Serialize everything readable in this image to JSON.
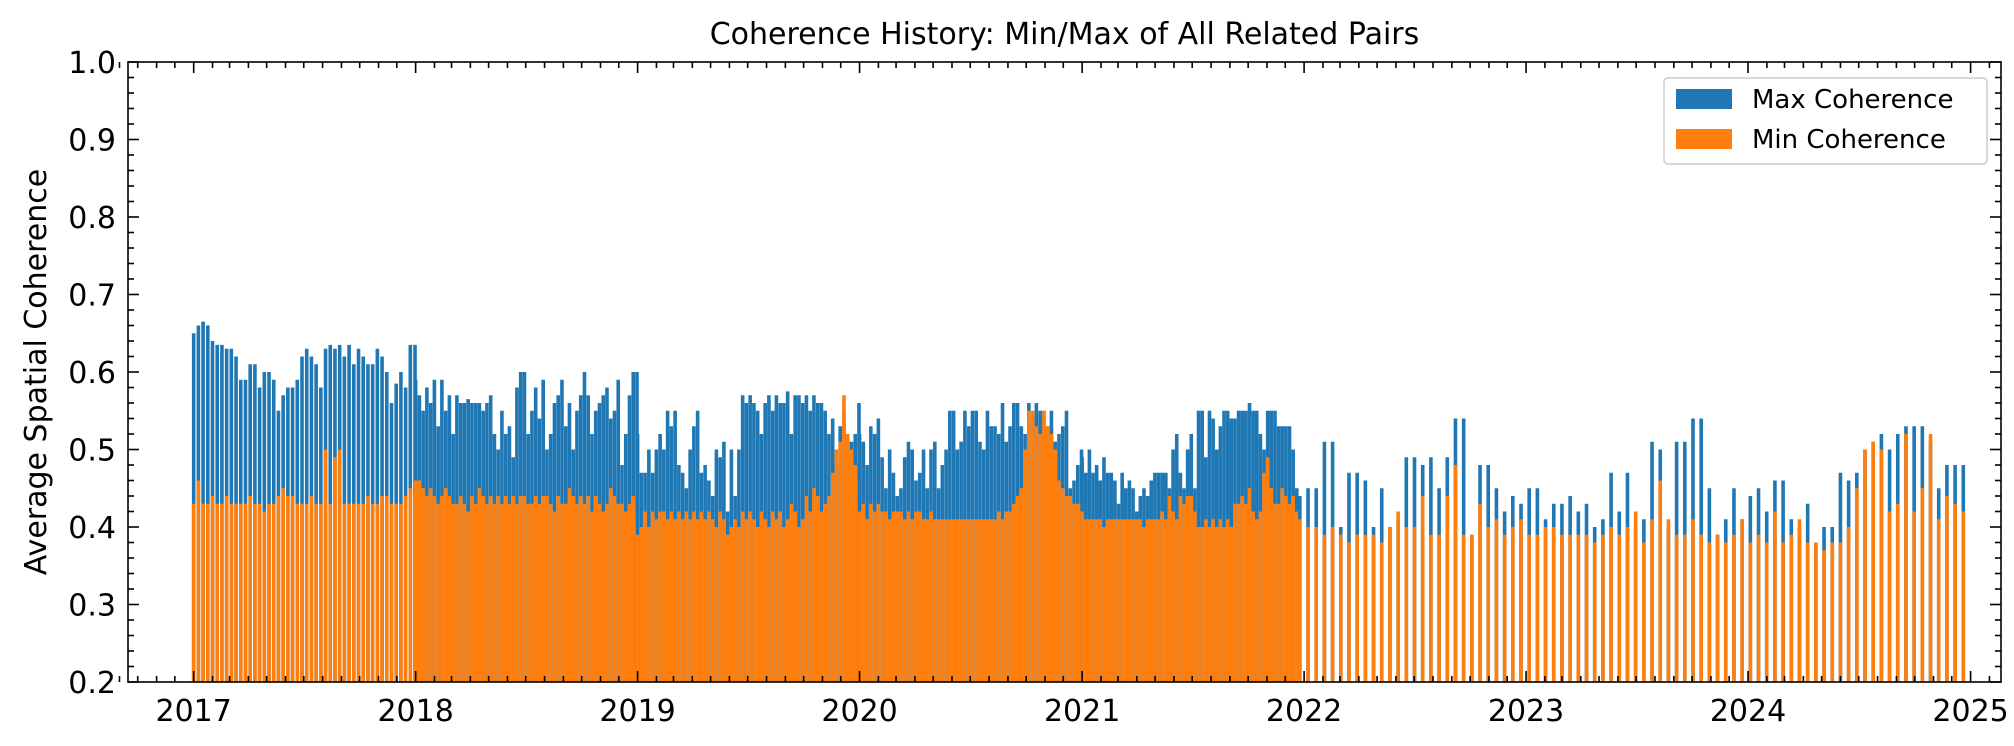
{
  "colors": {
    "max_series": "#1f77b4",
    "min_series": "#ff7f0e",
    "axis": "#000000",
    "legend_border": "#cccccc"
  },
  "chart_data": {
    "type": "bar",
    "title": "Coherence History: Min/Max of All Related Pairs",
    "xlabel": "",
    "ylabel": "Average Spatial Coherence",
    "ylim": [
      0.2,
      1.0
    ],
    "xlim": [
      "2016-09-15",
      "2025-02-20"
    ],
    "x_tick_labels": [
      "2017",
      "2018",
      "2019",
      "2020",
      "2021",
      "2022",
      "2023",
      "2024",
      "2025"
    ],
    "y_tick_labels": [
      "0.2",
      "0.3",
      "0.4",
      "0.5",
      "0.6",
      "0.7",
      "0.8",
      "0.9",
      "1.0"
    ],
    "grid": false,
    "legend_position": "top-right",
    "legend": [
      "Max Coherence",
      "Min Coherence"
    ],
    "segments": [
      {
        "start": "2017-01-01",
        "end": "2017-12-31",
        "n": 48,
        "max_values": [
          0.65,
          0.66,
          0.665,
          0.66,
          0.64,
          0.635,
          0.635,
          0.63,
          0.63,
          0.62,
          0.59,
          0.59,
          0.61,
          0.61,
          0.58,
          0.6,
          0.6,
          0.59,
          0.55,
          0.57,
          0.58,
          0.58,
          0.59,
          0.62,
          0.63,
          0.62,
          0.61,
          0.58,
          0.63,
          0.635,
          0.63,
          0.635,
          0.62,
          0.635,
          0.61,
          0.63,
          0.62,
          0.61,
          0.61,
          0.63,
          0.62,
          0.6,
          0.56,
          0.585,
          0.6,
          0.58,
          0.635,
          0.635
        ],
        "min_values": [
          0.43,
          0.46,
          0.43,
          0.43,
          0.44,
          0.43,
          0.43,
          0.44,
          0.43,
          0.43,
          0.43,
          0.43,
          0.44,
          0.43,
          0.43,
          0.42,
          0.43,
          0.43,
          0.44,
          0.45,
          0.44,
          0.44,
          0.43,
          0.43,
          0.43,
          0.44,
          0.43,
          0.43,
          0.5,
          0.43,
          0.49,
          0.5,
          0.43,
          0.43,
          0.43,
          0.43,
          0.43,
          0.44,
          0.43,
          0.43,
          0.44,
          0.44,
          0.43,
          0.43,
          0.43,
          0.44,
          0.45,
          0.44
        ]
      },
      {
        "start": "2018-01-01",
        "end": "2018-12-31",
        "n": 60,
        "max_values": [
          0.59,
          0.57,
          0.55,
          0.58,
          0.56,
          0.59,
          0.53,
          0.59,
          0.55,
          0.57,
          0.52,
          0.57,
          0.56,
          0.56,
          0.565,
          0.56,
          0.56,
          0.56,
          0.55,
          0.56,
          0.57,
          0.52,
          0.5,
          0.55,
          0.52,
          0.53,
          0.49,
          0.58,
          0.6,
          0.6,
          0.52,
          0.55,
          0.58,
          0.54,
          0.59,
          0.5,
          0.52,
          0.56,
          0.57,
          0.59,
          0.53,
          0.56,
          0.5,
          0.55,
          0.57,
          0.6,
          0.57,
          0.52,
          0.55,
          0.56,
          0.57,
          0.58,
          0.54,
          0.55,
          0.59,
          0.48,
          0.52,
          0.57,
          0.6,
          0.6
        ],
        "min_values": [
          0.46,
          0.46,
          0.45,
          0.44,
          0.45,
          0.44,
          0.43,
          0.44,
          0.45,
          0.44,
          0.43,
          0.43,
          0.44,
          0.43,
          0.42,
          0.44,
          0.43,
          0.45,
          0.44,
          0.43,
          0.44,
          0.43,
          0.44,
          0.43,
          0.44,
          0.43,
          0.44,
          0.43,
          0.44,
          0.44,
          0.43,
          0.43,
          0.44,
          0.43,
          0.44,
          0.44,
          0.43,
          0.42,
          0.44,
          0.43,
          0.43,
          0.45,
          0.44,
          0.43,
          0.44,
          0.43,
          0.44,
          0.42,
          0.44,
          0.43,
          0.42,
          0.43,
          0.45,
          0.44,
          0.43,
          0.43,
          0.42,
          0.43,
          0.44,
          0.42
        ]
      },
      {
        "start": "2019-01-01",
        "end": "2019-12-31",
        "n": 60,
        "max_values": [
          0.52,
          0.47,
          0.47,
          0.5,
          0.47,
          0.5,
          0.52,
          0.5,
          0.55,
          0.53,
          0.55,
          0.48,
          0.47,
          0.45,
          0.5,
          0.53,
          0.55,
          0.47,
          0.48,
          0.46,
          0.44,
          0.5,
          0.49,
          0.51,
          0.42,
          0.5,
          0.44,
          0.5,
          0.57,
          0.56,
          0.57,
          0.56,
          0.55,
          0.52,
          0.56,
          0.57,
          0.55,
          0.57,
          0.56,
          0.56,
          0.575,
          0.52,
          0.57,
          0.57,
          0.56,
          0.57,
          0.55,
          0.57,
          0.56,
          0.56,
          0.55,
          0.52,
          0.54,
          0.48,
          0.53,
          0.55,
          0.52,
          0.51,
          0.52,
          0.56
        ],
        "min_values": [
          0.39,
          0.4,
          0.42,
          0.4,
          0.42,
          0.41,
          0.42,
          0.42,
          0.41,
          0.42,
          0.41,
          0.42,
          0.41,
          0.42,
          0.41,
          0.42,
          0.41,
          0.42,
          0.41,
          0.42,
          0.41,
          0.4,
          0.42,
          0.41,
          0.39,
          0.4,
          0.41,
          0.4,
          0.42,
          0.41,
          0.42,
          0.41,
          0.4,
          0.42,
          0.41,
          0.4,
          0.42,
          0.41,
          0.42,
          0.4,
          0.41,
          0.43,
          0.42,
          0.4,
          0.41,
          0.44,
          0.42,
          0.45,
          0.44,
          0.42,
          0.43,
          0.44,
          0.47,
          0.5,
          0.51,
          0.57,
          0.52,
          0.5,
          0.48,
          0.46
        ]
      },
      {
        "start": "2020-01-01",
        "end": "2020-12-31",
        "n": 60,
        "max_values": [
          0.52,
          0.51,
          0.48,
          0.53,
          0.52,
          0.54,
          0.49,
          0.45,
          0.5,
          0.47,
          0.44,
          0.45,
          0.49,
          0.51,
          0.5,
          0.46,
          0.47,
          0.5,
          0.45,
          0.5,
          0.51,
          0.45,
          0.48,
          0.5,
          0.55,
          0.55,
          0.5,
          0.51,
          0.55,
          0.53,
          0.55,
          0.55,
          0.51,
          0.5,
          0.55,
          0.53,
          0.53,
          0.52,
          0.56,
          0.51,
          0.53,
          0.56,
          0.56,
          0.53,
          0.52,
          0.56,
          0.54,
          0.56,
          0.55,
          0.55,
          0.53,
          0.55,
          0.51,
          0.52,
          0.53,
          0.55,
          0.45,
          0.46,
          0.48,
          0.5
        ],
        "min_values": [
          0.42,
          0.43,
          0.41,
          0.43,
          0.42,
          0.43,
          0.42,
          0.42,
          0.41,
          0.42,
          0.42,
          0.42,
          0.41,
          0.42,
          0.41,
          0.42,
          0.42,
          0.41,
          0.41,
          0.42,
          0.41,
          0.41,
          0.41,
          0.41,
          0.41,
          0.41,
          0.41,
          0.41,
          0.41,
          0.41,
          0.41,
          0.41,
          0.41,
          0.41,
          0.41,
          0.41,
          0.41,
          0.42,
          0.41,
          0.42,
          0.42,
          0.43,
          0.44,
          0.45,
          0.5,
          0.55,
          0.55,
          0.53,
          0.52,
          0.55,
          0.53,
          0.52,
          0.5,
          0.46,
          0.45,
          0.44,
          0.44,
          0.43,
          0.43,
          0.43
        ]
      },
      {
        "start": "2021-01-01",
        "end": "2021-12-20",
        "n": 60,
        "max_values": [
          0.49,
          0.47,
          0.5,
          0.47,
          0.48,
          0.46,
          0.49,
          0.47,
          0.47,
          0.46,
          0.43,
          0.47,
          0.45,
          0.46,
          0.45,
          0.42,
          0.44,
          0.45,
          0.44,
          0.46,
          0.47,
          0.47,
          0.47,
          0.47,
          0.45,
          0.5,
          0.52,
          0.47,
          0.45,
          0.5,
          0.52,
          0.45,
          0.55,
          0.55,
          0.49,
          0.55,
          0.54,
          0.5,
          0.53,
          0.55,
          0.55,
          0.54,
          0.54,
          0.55,
          0.55,
          0.55,
          0.56,
          0.55,
          0.55,
          0.52,
          0.5,
          0.55,
          0.55,
          0.55,
          0.53,
          0.53,
          0.53,
          0.53,
          0.5,
          0.45
        ],
        "min_values": [
          0.42,
          0.41,
          0.41,
          0.41,
          0.41,
          0.41,
          0.4,
          0.41,
          0.41,
          0.41,
          0.41,
          0.41,
          0.41,
          0.41,
          0.41,
          0.41,
          0.41,
          0.4,
          0.41,
          0.41,
          0.41,
          0.41,
          0.42,
          0.41,
          0.44,
          0.42,
          0.41,
          0.44,
          0.43,
          0.44,
          0.44,
          0.42,
          0.4,
          0.4,
          0.41,
          0.4,
          0.41,
          0.4,
          0.41,
          0.4,
          0.41,
          0.4,
          0.43,
          0.43,
          0.44,
          0.43,
          0.45,
          0.42,
          0.41,
          0.42,
          0.47,
          0.49,
          0.45,
          0.43,
          0.43,
          0.45,
          0.44,
          0.43,
          0.44,
          0.42
        ]
      },
      {
        "start": "2021-12-25",
        "end": "2024-12-20",
        "n": 82,
        "max_values": [
          0.44,
          0.45,
          0.45,
          0.51,
          0.51,
          0.4,
          0.47,
          0.47,
          0.46,
          0.4,
          0.45,
          0.4,
          0.41,
          0.49,
          0.49,
          0.48,
          0.49,
          0.45,
          0.49,
          0.54,
          0.54,
          0.39,
          0.48,
          0.48,
          0.45,
          0.42,
          0.44,
          0.43,
          0.45,
          0.45,
          0.41,
          0.43,
          0.43,
          0.44,
          0.42,
          0.43,
          0.4,
          0.41,
          0.47,
          0.42,
          0.47,
          0.4,
          0.41,
          0.51,
          0.5,
          0.4,
          0.51,
          0.51,
          0.54,
          0.54,
          0.45,
          0.39,
          0.41,
          0.45,
          0.41,
          0.44,
          0.45,
          0.42,
          0.46,
          0.46,
          0.41,
          0.4,
          0.43,
          0.38,
          0.4,
          0.4,
          0.47,
          0.46,
          0.47,
          0.5,
          0.51,
          0.52,
          0.5,
          0.52,
          0.53,
          0.53,
          0.53,
          0.51,
          0.45,
          0.48,
          0.48,
          0.48
        ],
        "min_values": [
          0.41,
          0.4,
          0.4,
          0.39,
          0.4,
          0.39,
          0.38,
          0.39,
          0.39,
          0.39,
          0.38,
          0.4,
          0.42,
          0.4,
          0.4,
          0.44,
          0.39,
          0.39,
          0.44,
          0.48,
          0.39,
          0.39,
          0.43,
          0.4,
          0.41,
          0.39,
          0.4,
          0.41,
          0.39,
          0.39,
          0.4,
          0.4,
          0.39,
          0.39,
          0.39,
          0.39,
          0.38,
          0.39,
          0.4,
          0.39,
          0.4,
          0.42,
          0.38,
          0.41,
          0.46,
          0.41,
          0.39,
          0.39,
          0.41,
          0.39,
          0.38,
          0.39,
          0.38,
          0.39,
          0.41,
          0.38,
          0.39,
          0.38,
          0.42,
          0.38,
          0.39,
          0.41,
          0.38,
          0.38,
          0.37,
          0.38,
          0.38,
          0.4,
          0.45,
          0.5,
          0.51,
          0.5,
          0.42,
          0.43,
          0.52,
          0.42,
          0.45,
          0.52,
          0.41,
          0.44,
          0.43,
          0.42
        ]
      }
    ]
  }
}
